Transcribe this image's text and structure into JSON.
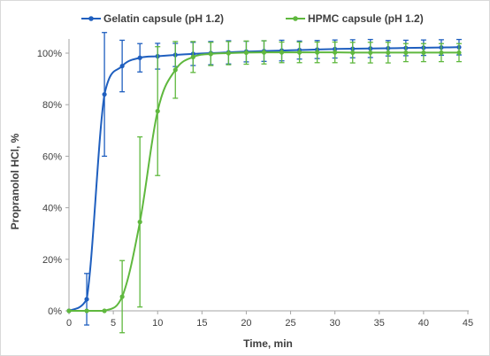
{
  "chart_data": {
    "type": "line",
    "title": "",
    "xlabel": "Time, min",
    "ylabel": "Propranolol HCl, %",
    "xlim": [
      0,
      45
    ],
    "ylim": [
      0,
      100
    ],
    "x_ticks": [
      "0",
      "5",
      "10",
      "15",
      "20",
      "25",
      "30",
      "35",
      "40",
      "45"
    ],
    "y_ticks": [
      "0%",
      "20%",
      "40%",
      "60%",
      "80%",
      "100%"
    ],
    "grid": false,
    "legend_position": "top",
    "series": [
      {
        "name": "Gelatin capsule (pH 1.2)",
        "color": "#1f5fbf",
        "points": [
          {
            "x": 0,
            "y": 0,
            "err": 0
          },
          {
            "x": 2,
            "y": 4.5,
            "err": 10
          },
          {
            "x": 4,
            "y": 84,
            "err": 24
          },
          {
            "x": 6,
            "y": 95,
            "err": 10
          },
          {
            "x": 8,
            "y": 98.2,
            "err": 5.5
          },
          {
            "x": 10,
            "y": 98.8,
            "err": 5
          },
          {
            "x": 12,
            "y": 99.3,
            "err": 4.5
          },
          {
            "x": 14,
            "y": 99.7,
            "err": 4.5
          },
          {
            "x": 16,
            "y": 100,
            "err": 4.5
          },
          {
            "x": 18,
            "y": 100.3,
            "err": 4.5
          },
          {
            "x": 20,
            "y": 100.6,
            "err": 4
          },
          {
            "x": 22,
            "y": 100.8,
            "err": 4
          },
          {
            "x": 24,
            "y": 101,
            "err": 4
          },
          {
            "x": 26,
            "y": 101.2,
            "err": 3.5
          },
          {
            "x": 28,
            "y": 101.4,
            "err": 3.5
          },
          {
            "x": 30,
            "y": 101.6,
            "err": 3.5
          },
          {
            "x": 32,
            "y": 101.7,
            "err": 3.5
          },
          {
            "x": 34,
            "y": 101.8,
            "err": 3.5
          },
          {
            "x": 36,
            "y": 101.9,
            "err": 3
          },
          {
            "x": 38,
            "y": 102,
            "err": 3
          },
          {
            "x": 40,
            "y": 102.1,
            "err": 3
          },
          {
            "x": 42,
            "y": 102.2,
            "err": 3
          },
          {
            "x": 44,
            "y": 102.3,
            "err": 3
          }
        ]
      },
      {
        "name": "HPMC capsule (pH 1.2)",
        "color": "#5fb83e",
        "points": [
          {
            "x": 0,
            "y": 0,
            "err": 0
          },
          {
            "x": 2,
            "y": 0,
            "err": 0
          },
          {
            "x": 4,
            "y": 0,
            "err": 0
          },
          {
            "x": 6,
            "y": 5.5,
            "err": 14
          },
          {
            "x": 8,
            "y": 34.5,
            "err": 33
          },
          {
            "x": 10,
            "y": 77.5,
            "err": 25
          },
          {
            "x": 12,
            "y": 93.5,
            "err": 11
          },
          {
            "x": 14,
            "y": 98.5,
            "err": 6
          },
          {
            "x": 16,
            "y": 99.7,
            "err": 4.5
          },
          {
            "x": 18,
            "y": 100,
            "err": 4.5
          },
          {
            "x": 20,
            "y": 100.2,
            "err": 4.5
          },
          {
            "x": 22,
            "y": 100.3,
            "err": 4.5
          },
          {
            "x": 24,
            "y": 100.3,
            "err": 4
          },
          {
            "x": 26,
            "y": 100.3,
            "err": 4
          },
          {
            "x": 28,
            "y": 100.3,
            "err": 4
          },
          {
            "x": 30,
            "y": 100.3,
            "err": 4
          },
          {
            "x": 32,
            "y": 100.2,
            "err": 4
          },
          {
            "x": 34,
            "y": 100.2,
            "err": 4
          },
          {
            "x": 36,
            "y": 100.2,
            "err": 4
          },
          {
            "x": 38,
            "y": 100.2,
            "err": 3.5
          },
          {
            "x": 40,
            "y": 100.2,
            "err": 3.5
          },
          {
            "x": 42,
            "y": 100.2,
            "err": 3.5
          },
          {
            "x": 44,
            "y": 100.2,
            "err": 3.5
          }
        ]
      }
    ]
  }
}
